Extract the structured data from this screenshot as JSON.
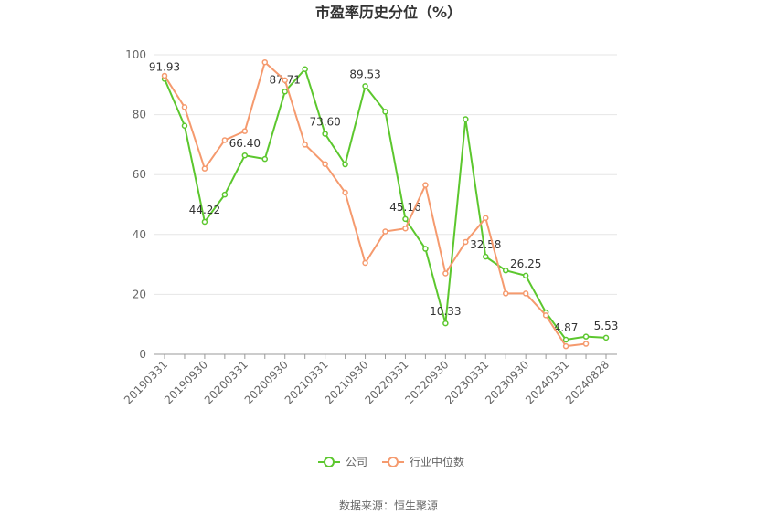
{
  "chart_data": {
    "type": "line",
    "title": "市盈率历史分位（%）",
    "categories": [
      "20190331",
      null,
      "20190930",
      null,
      "20200331",
      null,
      "20200930",
      null,
      "20210331",
      null,
      "20210930",
      null,
      "20220331",
      null,
      "20220930",
      null,
      "20230331",
      null,
      "20230930",
      null,
      "20240331",
      null,
      "20240828"
    ],
    "series": [
      {
        "name": "公司",
        "color": "#5cc72e",
        "values": [
          91.93,
          76.3,
          44.22,
          53.3,
          66.4,
          65.2,
          87.71,
          95.2,
          73.6,
          63.4,
          89.53,
          81.0,
          45.16,
          35.2,
          10.33,
          78.5,
          32.58,
          28.0,
          26.25,
          14.0,
          4.87,
          5.9,
          5.53
        ],
        "value_labels": [
          "91.93",
          null,
          "44.22",
          null,
          "66.40",
          null,
          "87.71",
          null,
          "73.60",
          null,
          "89.53",
          null,
          "45.16",
          null,
          "10.33",
          null,
          "32.58",
          null,
          "26.25",
          null,
          "4.87",
          null,
          "5.53"
        ]
      },
      {
        "name": "行业中位数",
        "color": "#f59a6e",
        "values": [
          93.0,
          82.5,
          62.0,
          71.5,
          74.5,
          97.5,
          91.5,
          70.0,
          63.5,
          54.0,
          30.5,
          41.0,
          42.0,
          56.5,
          27.0,
          37.5,
          45.5,
          20.3,
          20.3,
          13.0,
          2.7,
          3.5,
          null
        ]
      }
    ],
    "source": "数据来源：恒生聚源",
    "ylim": [
      0,
      100
    ],
    "yticks": [
      0,
      20,
      40,
      60,
      80,
      100
    ],
    "grid": true,
    "legend": "bottom"
  }
}
